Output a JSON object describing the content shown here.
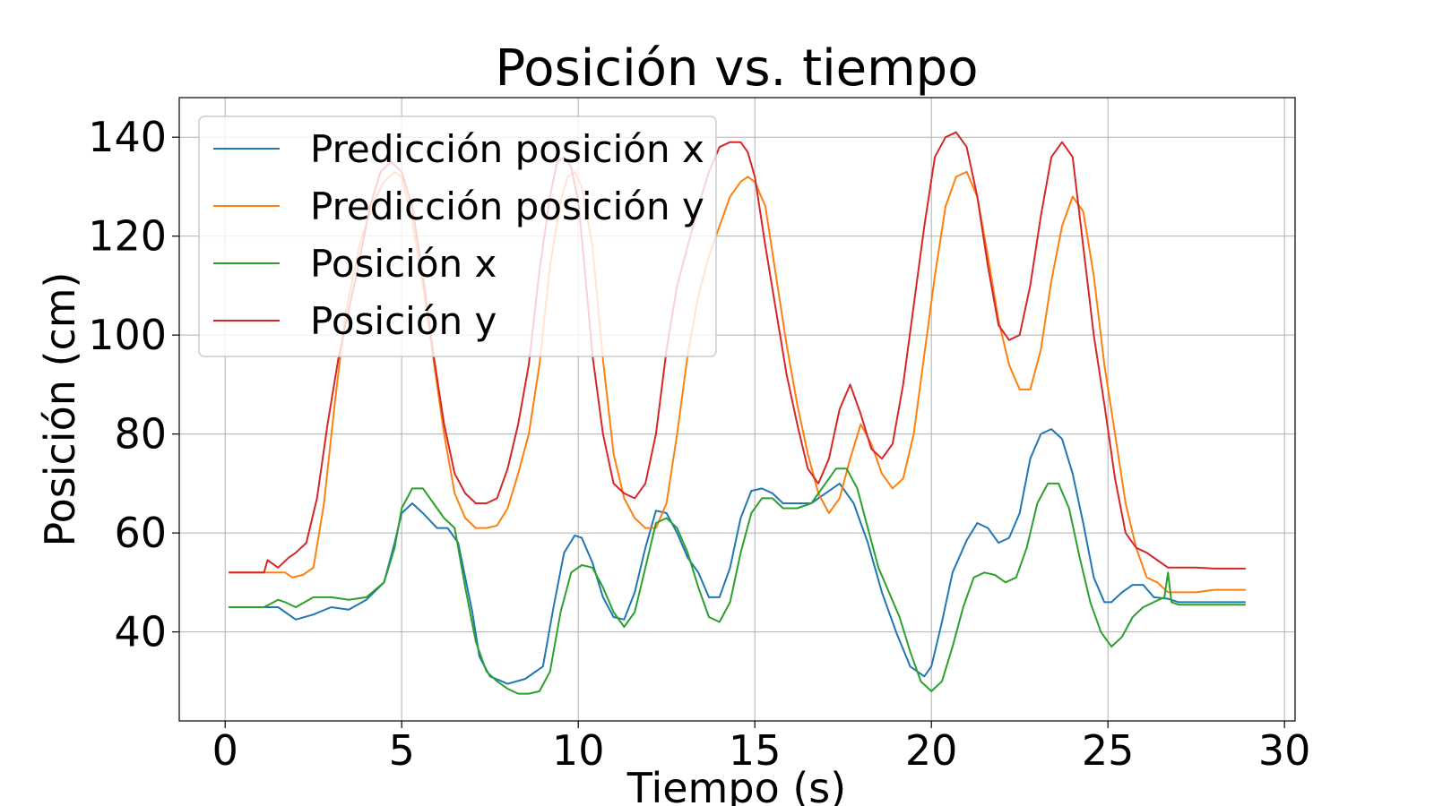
{
  "chart_data": {
    "type": "line",
    "title": "Posición vs. tiempo",
    "xlabel": "Tiempo (s)",
    "ylabel": "Posición (cm)",
    "xlim": [
      -1.3,
      30.3
    ],
    "ylim": [
      22,
      148
    ],
    "xticks": [
      0,
      5,
      10,
      15,
      20,
      25,
      30
    ],
    "yticks": [
      40,
      60,
      80,
      100,
      120,
      140
    ],
    "xtick_labels": [
      "0",
      "5",
      "10",
      "15",
      "20",
      "25",
      "30"
    ],
    "ytick_labels": [
      "40",
      "60",
      "80",
      "100",
      "120",
      "140"
    ],
    "grid": true,
    "legend_position": "top-left",
    "series": [
      {
        "name": "Predicción posición x",
        "color": "#1f77b4",
        "x": [
          0.1,
          1.1,
          1.5,
          1.7,
          2.0,
          2.5,
          3.0,
          3.5,
          4.0,
          4.5,
          4.8,
          5.0,
          5.3,
          5.6,
          6.0,
          6.3,
          6.6,
          7.0,
          7.2,
          7.5,
          8.0,
          8.5,
          9.0,
          9.3,
          9.6,
          9.9,
          10.1,
          10.4,
          10.7,
          11.0,
          11.3,
          11.6,
          11.9,
          12.2,
          12.5,
          12.8,
          13.1,
          13.4,
          13.7,
          14.0,
          14.3,
          14.6,
          14.9,
          15.2,
          15.5,
          15.8,
          16.2,
          16.6,
          17.0,
          17.4,
          17.8,
          18.2,
          18.6,
          19.0,
          19.4,
          19.8,
          20.0,
          20.3,
          20.6,
          21.0,
          21.3,
          21.6,
          21.9,
          22.2,
          22.5,
          22.8,
          23.1,
          23.4,
          23.7,
          24.0,
          24.3,
          24.6,
          24.9,
          25.1,
          25.4,
          25.7,
          26.0,
          26.3,
          26.7,
          27.0,
          27.5,
          28.0,
          28.5,
          28.9
        ],
        "y": [
          45,
          45,
          45,
          44,
          42.5,
          43.5,
          45,
          44.5,
          46.5,
          50,
          58,
          64,
          66,
          64,
          61,
          61,
          58,
          44,
          35,
          31,
          29.5,
          30.5,
          33,
          45,
          56,
          59.5,
          59,
          54,
          47,
          43,
          42.5,
          48,
          57,
          64.5,
          64,
          60,
          55,
          52,
          47,
          47,
          53,
          63,
          68.5,
          69,
          68,
          66,
          66,
          66,
          68,
          70,
          66,
          58,
          48,
          40,
          33,
          31,
          33,
          42,
          52,
          58.5,
          62,
          61,
          58,
          59,
          64,
          75,
          80,
          81,
          79,
          72,
          62,
          51,
          46,
          46,
          48,
          49.5,
          49.5,
          47,
          46.7,
          46,
          46,
          46,
          46,
          46
        ]
      },
      {
        "name": "Predicción posición y",
        "color": "#ff7f0e",
        "x": [
          0.1,
          1.0,
          1.7,
          1.9,
          2.2,
          2.5,
          2.8,
          3.1,
          3.4,
          3.8,
          4.2,
          4.5,
          4.8,
          5.0,
          5.3,
          5.6,
          5.9,
          6.2,
          6.5,
          6.8,
          7.1,
          7.4,
          7.7,
          8.0,
          8.3,
          8.6,
          8.9,
          9.2,
          9.5,
          9.7,
          9.9,
          10.1,
          10.4,
          10.7,
          11.0,
          11.3,
          11.6,
          11.9,
          12.2,
          12.5,
          12.8,
          13.1,
          13.4,
          13.7,
          14.0,
          14.3,
          14.6,
          14.8,
          15.0,
          15.3,
          15.6,
          15.9,
          16.2,
          16.5,
          16.8,
          17.1,
          17.4,
          17.7,
          18.0,
          18.3,
          18.6,
          18.9,
          19.2,
          19.5,
          19.8,
          20.1,
          20.4,
          20.7,
          21.0,
          21.3,
          21.6,
          21.9,
          22.2,
          22.5,
          22.8,
          23.1,
          23.4,
          23.7,
          24.0,
          24.3,
          24.6,
          24.9,
          25.2,
          25.5,
          25.8,
          26.1,
          26.4,
          26.7,
          27.0,
          27.5,
          28.0,
          28.5,
          28.9
        ],
        "y": [
          52,
          52,
          52,
          51,
          51.5,
          53,
          66,
          86,
          104,
          118,
          127,
          131,
          133,
          132,
          123,
          110,
          95,
          80,
          68,
          63,
          61,
          61,
          61.5,
          65,
          72,
          80,
          94,
          114,
          127,
          132,
          133,
          130,
          118,
          95,
          76,
          67,
          63,
          61,
          61,
          66,
          80,
          96,
          108,
          116,
          122,
          128,
          131,
          132,
          131,
          126,
          112,
          98,
          86,
          76,
          68,
          64,
          67,
          75,
          82,
          78,
          72,
          69,
          71,
          80,
          96,
          112,
          126,
          132,
          133,
          128,
          116,
          103,
          94,
          89,
          89,
          97,
          111,
          122,
          128,
          125,
          112,
          94,
          80,
          66,
          57,
          51,
          50,
          48,
          48,
          48,
          48.5,
          48.5,
          48.5
        ]
      },
      {
        "name": "Posición x",
        "color": "#2ca02c",
        "x": [
          0.1,
          1.1,
          1.5,
          1.7,
          2.0,
          2.5,
          3.0,
          3.5,
          4.0,
          4.5,
          4.8,
          5.0,
          5.3,
          5.6,
          5.9,
          6.2,
          6.5,
          6.8,
          7.1,
          7.4,
          7.7,
          8.0,
          8.3,
          8.6,
          8.9,
          9.2,
          9.5,
          9.8,
          10.1,
          10.4,
          10.7,
          11.0,
          11.3,
          11.6,
          11.9,
          12.2,
          12.5,
          12.8,
          13.1,
          13.4,
          13.7,
          14.0,
          14.3,
          14.6,
          14.9,
          15.2,
          15.5,
          15.8,
          16.2,
          16.6,
          17.0,
          17.3,
          17.6,
          17.9,
          18.2,
          18.5,
          18.8,
          19.1,
          19.4,
          19.7,
          20.0,
          20.3,
          20.6,
          20.9,
          21.2,
          21.5,
          21.8,
          22.1,
          22.4,
          22.7,
          23.0,
          23.3,
          23.6,
          23.9,
          24.2,
          24.5,
          24.8,
          25.1,
          25.4,
          25.7,
          26.0,
          26.3,
          26.6,
          26.7,
          26.8,
          27.0,
          27.5,
          28.0,
          28.5,
          28.9
        ],
        "y": [
          45,
          45,
          46.5,
          46,
          45,
          47,
          47,
          46.5,
          47,
          50,
          57,
          65,
          69,
          69,
          66,
          63,
          61,
          49,
          38,
          32,
          30,
          28.5,
          27.5,
          27.5,
          28,
          32,
          44,
          52,
          53.5,
          53,
          49,
          44,
          41,
          44,
          53,
          62,
          63,
          61,
          56,
          49,
          43,
          42,
          46,
          56,
          64,
          67,
          67,
          65,
          65,
          66,
          70,
          73,
          73,
          69,
          61,
          53,
          48,
          43,
          36,
          30,
          28,
          30,
          37,
          45,
          51,
          52,
          51.5,
          50,
          51,
          57,
          66,
          70,
          70,
          65,
          55,
          46,
          40,
          37,
          39,
          43,
          45,
          46,
          47,
          52,
          46,
          45.5,
          45.5,
          45.5,
          45.5,
          45.5
        ]
      },
      {
        "name": "Posición y",
        "color": "#d62728",
        "x": [
          0.1,
          1.1,
          1.2,
          1.5,
          1.8,
          2.0,
          2.3,
          2.6,
          2.9,
          3.2,
          3.5,
          3.8,
          4.1,
          4.4,
          4.7,
          5.0,
          5.3,
          5.6,
          5.9,
          6.2,
          6.5,
          6.8,
          7.1,
          7.4,
          7.7,
          8.0,
          8.3,
          8.6,
          8.9,
          9.2,
          9.4,
          9.6,
          9.8,
          10.0,
          10.2,
          10.4,
          10.7,
          11.0,
          11.3,
          11.6,
          11.9,
          12.2,
          12.5,
          12.8,
          13.1,
          13.4,
          13.7,
          14.0,
          14.3,
          14.6,
          14.8,
          15.0,
          15.3,
          15.6,
          15.9,
          16.2,
          16.5,
          16.8,
          17.1,
          17.4,
          17.7,
          18.0,
          18.3,
          18.6,
          18.9,
          19.2,
          19.5,
          19.8,
          20.1,
          20.4,
          20.7,
          21.0,
          21.3,
          21.6,
          21.9,
          22.2,
          22.5,
          22.8,
          23.1,
          23.4,
          23.7,
          24.0,
          24.3,
          24.6,
          24.9,
          25.2,
          25.5,
          25.8,
          26.1,
          26.4,
          26.7,
          27.0,
          27.5,
          28.0,
          28.5,
          28.9
        ],
        "y": [
          52,
          52,
          54.5,
          53,
          55,
          56,
          58,
          67,
          82,
          95,
          105,
          115,
          126,
          133,
          135,
          133,
          126,
          112,
          96,
          82,
          72,
          68,
          66,
          66,
          67,
          73,
          82,
          94,
          113,
          128,
          135,
          136,
          134,
          127,
          112,
          96,
          80,
          70,
          68,
          67,
          70,
          80,
          97,
          110,
          118,
          126,
          133,
          138,
          139,
          139,
          137,
          132,
          118,
          105,
          92,
          82,
          73,
          70,
          75,
          85,
          90,
          84,
          77,
          75,
          78,
          90,
          106,
          122,
          136,
          140,
          141,
          138,
          128,
          114,
          102,
          99,
          100,
          110,
          124,
          136,
          139,
          136,
          118,
          100,
          86,
          71,
          60,
          57,
          56,
          54.5,
          53,
          53,
          53,
          52.8,
          52.8,
          52.8
        ]
      }
    ]
  }
}
